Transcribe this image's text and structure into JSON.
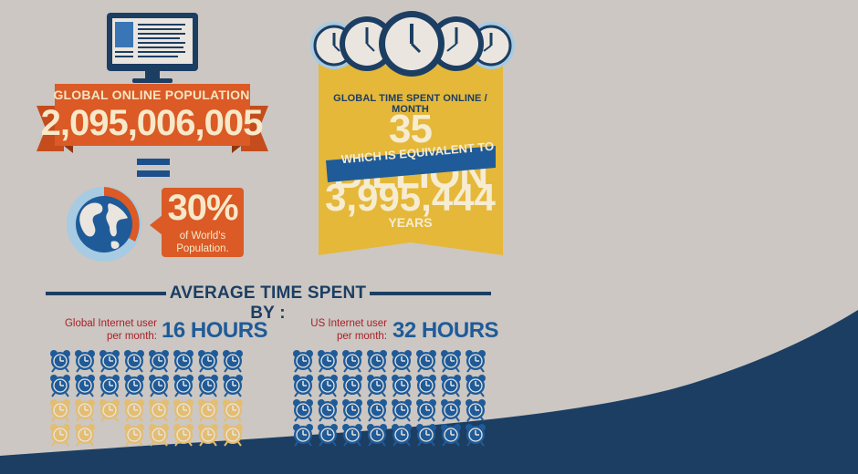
{
  "population": {
    "title": "GLOBAL ONLINE POPULATION",
    "value": "2,095,006,005",
    "percent": "30%",
    "percent_caption_line1": "of World's",
    "percent_caption_line2": "Population."
  },
  "time_online": {
    "title": "GLOBAL TIME SPENT ONLINE / MONTH",
    "value": "35 BILLION",
    "equivalent_text": "WHICH IS EQUIVALENT TO",
    "years_value": "3,995,444",
    "years_label": "YEARS"
  },
  "average": {
    "title": "AVERAGE TIME SPENT BY :",
    "global": {
      "label_line1": "Global Internet user",
      "label_line2": "per month:",
      "hours": "16 HOURS",
      "filled_clocks": 16,
      "total_clocks": 32
    },
    "us": {
      "label_line1": "US Internet user",
      "label_line2": "per month:",
      "hours": "32 HOURS",
      "filled_clocks": 32,
      "total_clocks": 32
    }
  },
  "colors": {
    "background": "#ccc7c2",
    "navy": "#1c3e63",
    "blue": "#1f5b99",
    "orange": "#db5a26",
    "yellow": "#e5b83a",
    "cream": "#f6e9c9",
    "clock_empty": "#e3bd72"
  },
  "icons": [
    "monitor-icon",
    "globe-icon",
    "wall-clock-icon",
    "alarm-clock-icon"
  ]
}
